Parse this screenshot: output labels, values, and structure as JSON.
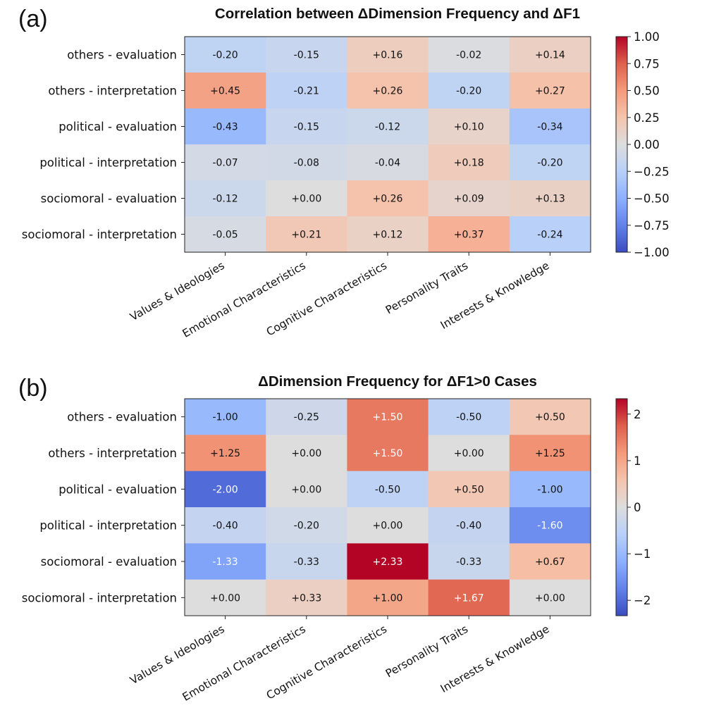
{
  "chart_data": [
    {
      "type": "heatmap",
      "panel_label": "(a)",
      "title": "Correlation between ΔDimension Frequency and ΔF1",
      "rows": [
        "others - evaluation",
        "others - interpretation",
        "political - evaluation",
        "political - interpretation",
        "sociomoral - evaluation",
        "sociomoral - interpretation"
      ],
      "columns": [
        "Values & Ideologies",
        "Emotional Characteristics",
        "Cognitive Characteristics",
        "Personality Traits",
        "Interests & Knowledge"
      ],
      "values": [
        [
          -0.2,
          -0.15,
          0.16,
          -0.02,
          0.14
        ],
        [
          0.45,
          -0.21,
          0.26,
          -0.2,
          0.27
        ],
        [
          -0.43,
          -0.15,
          -0.12,
          0.1,
          -0.34
        ],
        [
          -0.07,
          -0.08,
          -0.04,
          0.18,
          -0.2
        ],
        [
          -0.12,
          0.0,
          0.26,
          0.09,
          0.13
        ],
        [
          -0.05,
          0.21,
          0.12,
          0.37,
          -0.24
        ]
      ],
      "cell_labels": [
        [
          "-0.20",
          "-0.15",
          "+0.16",
          "-0.02",
          "+0.14"
        ],
        [
          "+0.45",
          "-0.21",
          "+0.26",
          "-0.20",
          "+0.27"
        ],
        [
          "-0.43",
          "-0.15",
          "-0.12",
          "+0.10",
          "-0.34"
        ],
        [
          "-0.07",
          "-0.08",
          "-0.04",
          "+0.18",
          "-0.20"
        ],
        [
          "-0.12",
          "+0.00",
          "+0.26",
          "+0.09",
          "+0.13"
        ],
        [
          "-0.05",
          "+0.21",
          "+0.12",
          "+0.37",
          "-0.24"
        ]
      ],
      "colormap": "coolwarm",
      "vmin": -1.0,
      "vmax": 1.0,
      "colorbar_ticks": [
        1.0,
        0.75,
        0.5,
        0.25,
        0.0,
        -0.25,
        -0.5,
        -0.75,
        -1.0
      ],
      "colorbar_tick_labels": [
        "1.00",
        "0.75",
        "0.50",
        "0.25",
        "0.00",
        "−0.25",
        "−0.50",
        "−0.75",
        "−1.00"
      ]
    },
    {
      "type": "heatmap",
      "panel_label": "(b)",
      "title": "ΔDimension Frequency for ΔF1>0 Cases",
      "rows": [
        "others - evaluation",
        "others - interpretation",
        "political - evaluation",
        "political - interpretation",
        "sociomoral - evaluation",
        "sociomoral - interpretation"
      ],
      "columns": [
        "Values & Ideologies",
        "Emotional Characteristics",
        "Cognitive Characteristics",
        "Personality Traits",
        "Interests & Knowledge"
      ],
      "values": [
        [
          -1.0,
          -0.25,
          1.5,
          -0.5,
          0.5
        ],
        [
          1.25,
          0.0,
          1.5,
          0.0,
          1.25
        ],
        [
          -2.0,
          0.0,
          -0.5,
          0.5,
          -1.0
        ],
        [
          -0.4,
          -0.2,
          0.0,
          -0.4,
          -1.6
        ],
        [
          -1.33,
          -0.33,
          2.33,
          -0.33,
          0.67
        ],
        [
          0.0,
          0.33,
          1.0,
          1.67,
          0.0
        ]
      ],
      "cell_labels": [
        [
          "-1.00",
          "-0.25",
          "+1.50",
          "-0.50",
          "+0.50"
        ],
        [
          "+1.25",
          "+0.00",
          "+1.50",
          "+0.00",
          "+1.25"
        ],
        [
          "-2.00",
          "+0.00",
          "-0.50",
          "+0.50",
          "-1.00"
        ],
        [
          "-0.40",
          "-0.20",
          "+0.00",
          "-0.40",
          "-1.60"
        ],
        [
          "-1.33",
          "-0.33",
          "+2.33",
          "-0.33",
          "+0.67"
        ],
        [
          "+0.00",
          "+0.33",
          "+1.00",
          "+1.67",
          "+0.00"
        ]
      ],
      "colormap": "coolwarm",
      "vmin": -2.33,
      "vmax": 2.33,
      "colorbar_ticks": [
        2,
        1,
        0,
        -1,
        -2
      ],
      "colorbar_tick_labels": [
        "2",
        "1",
        "0",
        "−1",
        "−2"
      ]
    }
  ]
}
